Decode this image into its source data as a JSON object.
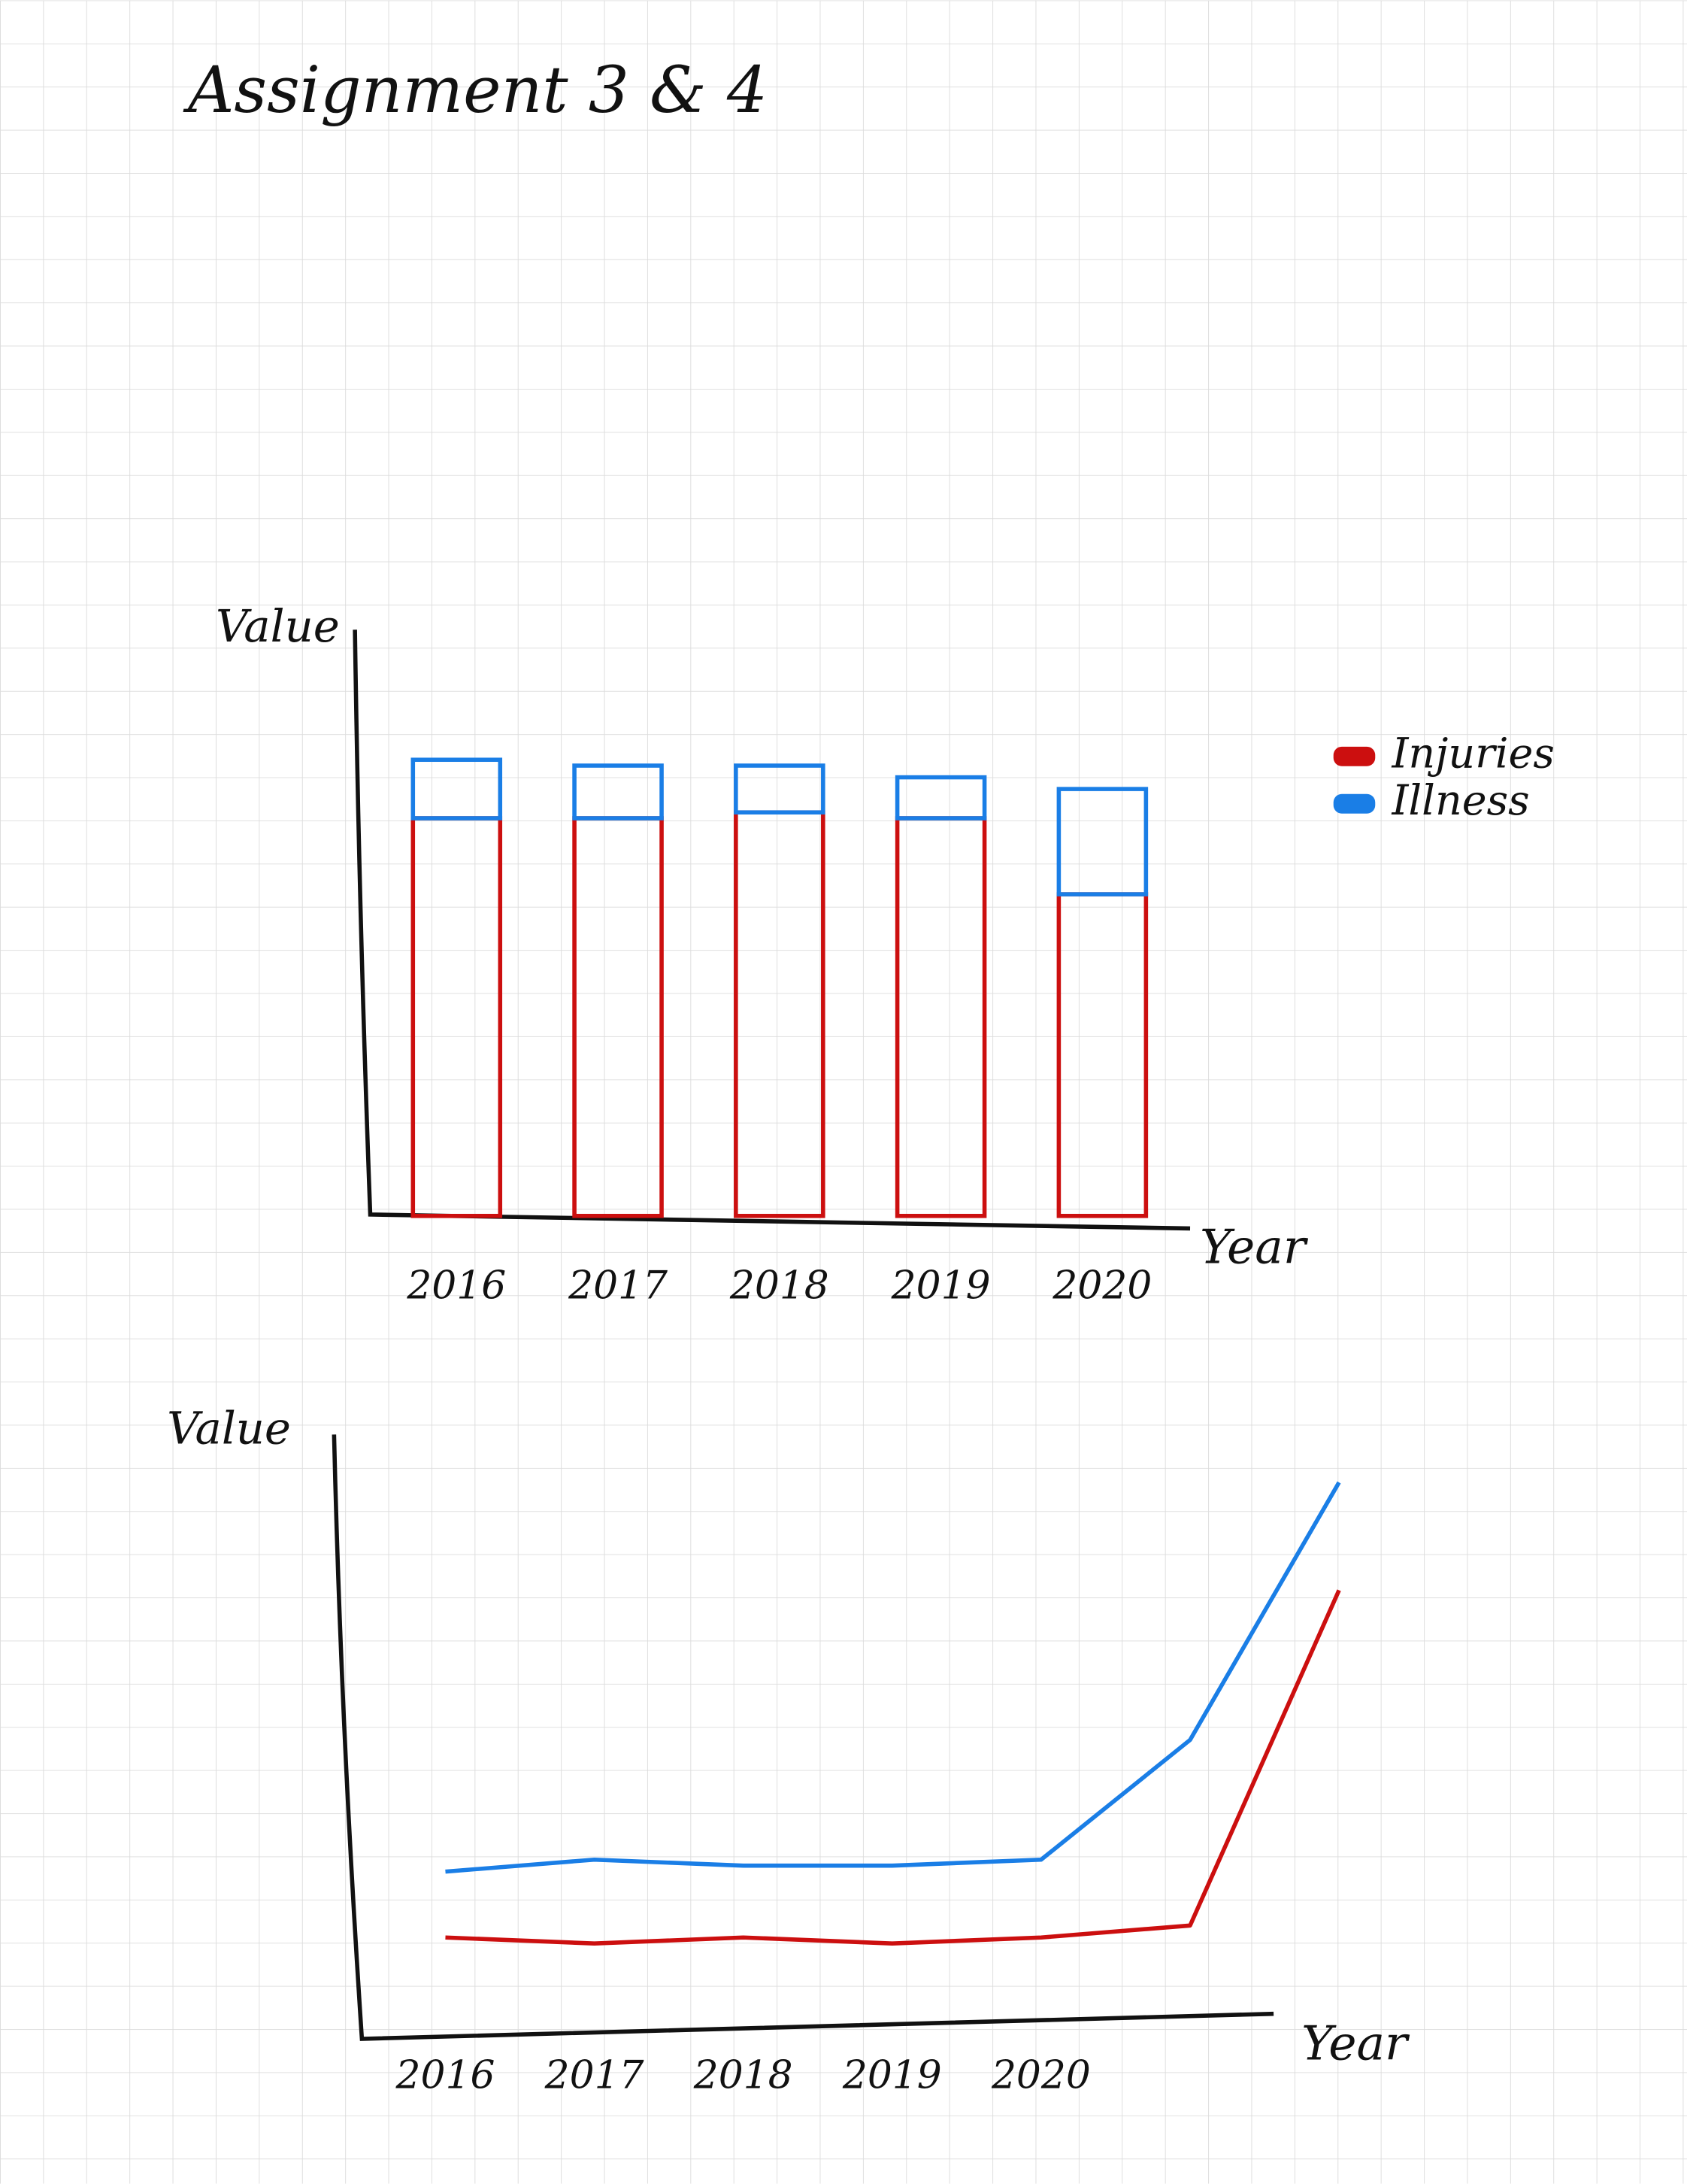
{
  "title": "Assignment 3 & 4",
  "chart_data": [
    {
      "type": "bar",
      "stacked": true,
      "xlabel": "Year",
      "ylabel": "Value",
      "categories": [
        "2016",
        "2017",
        "2018",
        "2019",
        "2020"
      ],
      "series": [
        {
          "name": "Injuries",
          "color": "#cc0f0f",
          "values": [
            68,
            68,
            69,
            68,
            55
          ]
        },
        {
          "name": "Illness",
          "color": "#1a7ee6",
          "values": [
            10,
            9,
            8,
            7,
            18
          ]
        }
      ],
      "ylim": [
        0,
        100
      ],
      "legend": "right"
    },
    {
      "type": "line",
      "xlabel": "Year",
      "ylabel": "Value",
      "categories": [
        "2016",
        "2017",
        "2018",
        "2019",
        "2020",
        null,
        null
      ],
      "series": [
        {
          "color": "#1a7ee6",
          "values": [
            27,
            29,
            28,
            28,
            29,
            49,
            92
          ]
        },
        {
          "color": "#cc0f0f",
          "values": [
            16,
            15,
            16,
            15,
            16,
            18,
            74
          ]
        }
      ],
      "ylim": [
        0,
        100
      ]
    }
  ]
}
